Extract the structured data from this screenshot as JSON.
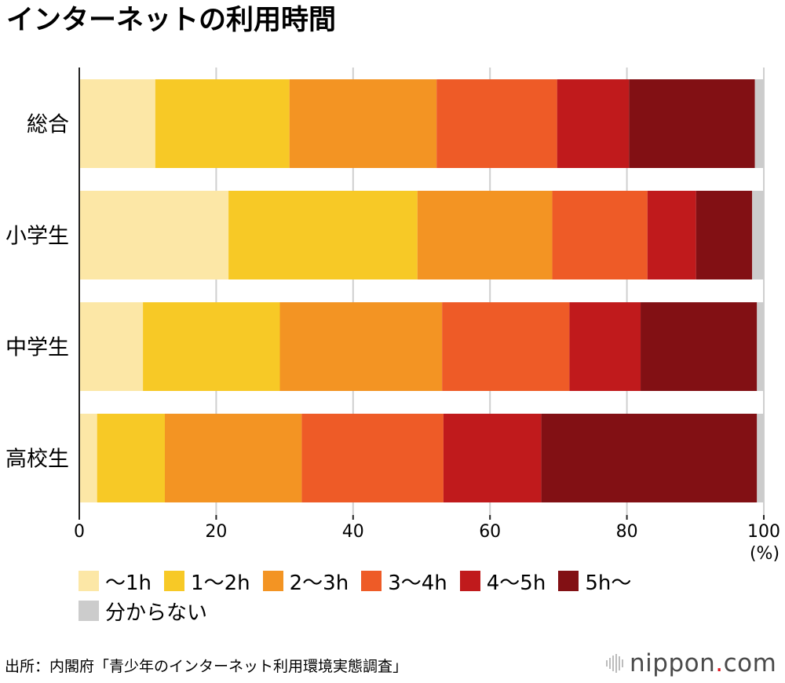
{
  "title": "インターネットの利用時間",
  "colors": {
    "h0_1": "#fce7a6",
    "h1_2": "#f7c926",
    "h2_3": "#f39423",
    "h3_4": "#ee5b27",
    "h4_5": "#c01a1c",
    "h5_plus": "#821014",
    "unknown": "#cccccc",
    "grid": "#cfcfcf",
    "axis": "#222222"
  },
  "chart_data": {
    "type": "bar",
    "orientation": "horizontal",
    "stacked": true,
    "categories": [
      "総合",
      "小学生",
      "中学生",
      "高校生"
    ],
    "series": [
      {
        "name": "～1h",
        "color": "#fce7a6",
        "values": [
          11.1,
          21.8,
          9.3,
          2.6
        ]
      },
      {
        "name": "1～2h",
        "color": "#f7c926",
        "values": [
          19.6,
          27.6,
          20.0,
          9.9
        ]
      },
      {
        "name": "2～3h",
        "color": "#f39423",
        "values": [
          21.5,
          19.7,
          23.7,
          20.0
        ]
      },
      {
        "name": "3～4h",
        "color": "#ee5b27",
        "values": [
          17.6,
          13.9,
          18.6,
          20.7
        ]
      },
      {
        "name": "4～5h",
        "color": "#c01a1c",
        "values": [
          10.5,
          7.1,
          10.4,
          14.3
        ]
      },
      {
        "name": "5h～",
        "color": "#821014",
        "values": [
          18.4,
          8.2,
          17.0,
          31.5
        ]
      },
      {
        "name": "分からない",
        "color": "#cccccc",
        "values": [
          1.3,
          1.7,
          1.0,
          1.0
        ]
      }
    ],
    "xlim": [
      0,
      100
    ],
    "xticks": [
      0,
      20,
      40,
      60,
      80,
      100
    ],
    "unit_label": "(%)",
    "grid": true,
    "legend_position": "bottom"
  },
  "source": "出所：内閣府「青少年のインターネット利用環境実態調査」",
  "logo": {
    "name": "nippon",
    "dot": ".",
    "suffix": "com"
  }
}
